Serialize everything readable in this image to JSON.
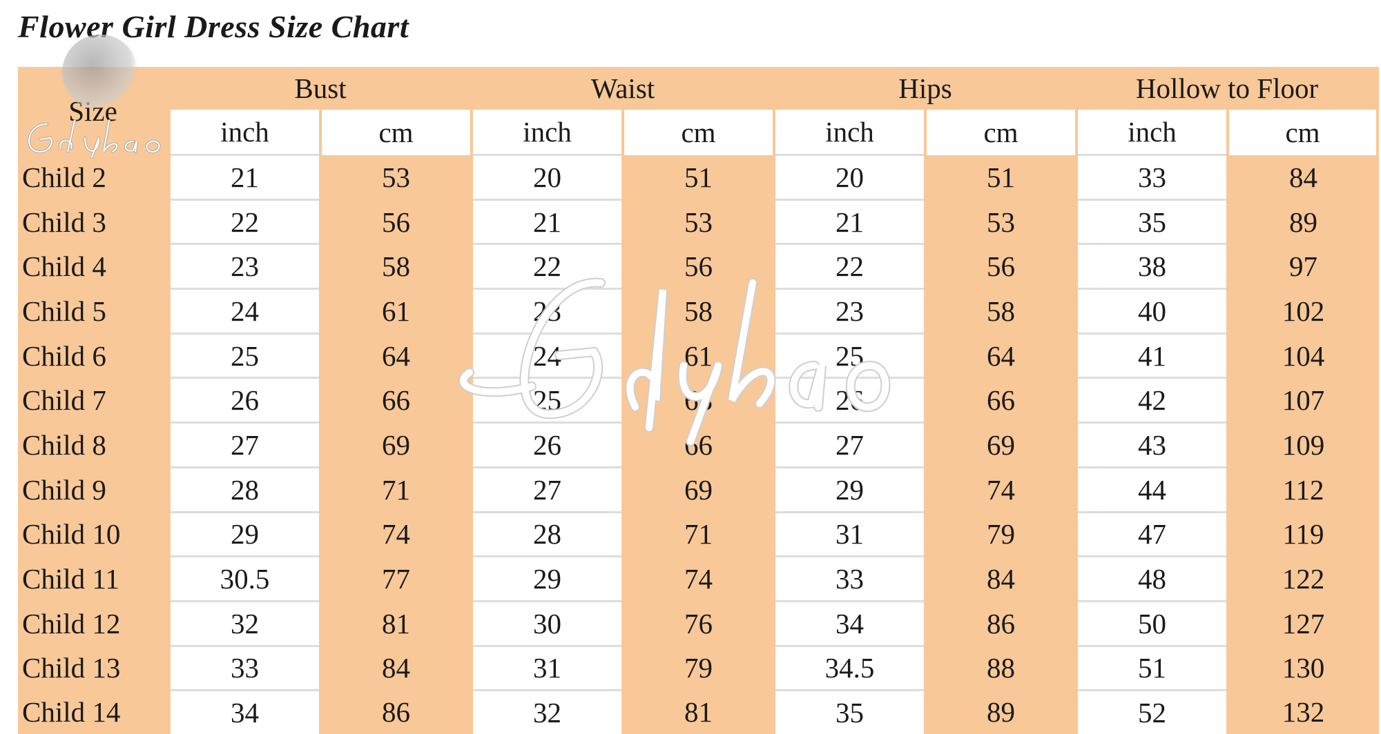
{
  "title": "Flower Girl Dress Size Chart",
  "watermark": "Gdybao",
  "colors": {
    "peach": "#f8c898",
    "white": "#ffffff"
  },
  "headers": {
    "size": "Size",
    "groups": [
      "Bust",
      "Waist",
      "Hips",
      "Hollow to Floor"
    ],
    "units": [
      "inch",
      "cm",
      "inch",
      "cm",
      "inch",
      "cm",
      "inch",
      "cm"
    ]
  },
  "rows": [
    {
      "size": "Child 2",
      "values": [
        "21",
        "53",
        "20",
        "51",
        "20",
        "51",
        "33",
        "84"
      ]
    },
    {
      "size": "Child 3",
      "values": [
        "22",
        "56",
        "21",
        "53",
        "21",
        "53",
        "35",
        "89"
      ]
    },
    {
      "size": "Child 4",
      "values": [
        "23",
        "58",
        "22",
        "56",
        "22",
        "56",
        "38",
        "97"
      ]
    },
    {
      "size": "Child 5",
      "values": [
        "24",
        "61",
        "23",
        "58",
        "23",
        "58",
        "40",
        "102"
      ]
    },
    {
      "size": "Child 6",
      "values": [
        "25",
        "64",
        "24",
        "61",
        "25",
        "64",
        "41",
        "104"
      ]
    },
    {
      "size": "Child 7",
      "values": [
        "26",
        "66",
        "25",
        "63",
        "26",
        "66",
        "42",
        "107"
      ]
    },
    {
      "size": "Child 8",
      "values": [
        "27",
        "69",
        "26",
        "66",
        "27",
        "69",
        "43",
        "109"
      ]
    },
    {
      "size": "Child 9",
      "values": [
        "28",
        "71",
        "27",
        "69",
        "29",
        "74",
        "44",
        "112"
      ]
    },
    {
      "size": "Child 10",
      "values": [
        "29",
        "74",
        "28",
        "71",
        "31",
        "79",
        "47",
        "119"
      ]
    },
    {
      "size": "Child 11",
      "values": [
        "30.5",
        "77",
        "29",
        "74",
        "33",
        "84",
        "48",
        "122"
      ]
    },
    {
      "size": "Child 12",
      "values": [
        "32",
        "81",
        "30",
        "76",
        "34",
        "86",
        "50",
        "127"
      ]
    },
    {
      "size": "Child 13",
      "values": [
        "33",
        "84",
        "31",
        "79",
        "34.5",
        "88",
        "51",
        "130"
      ]
    },
    {
      "size": "Child 14",
      "values": [
        "34",
        "86",
        "32",
        "81",
        "35",
        "89",
        "52",
        "132"
      ]
    }
  ]
}
